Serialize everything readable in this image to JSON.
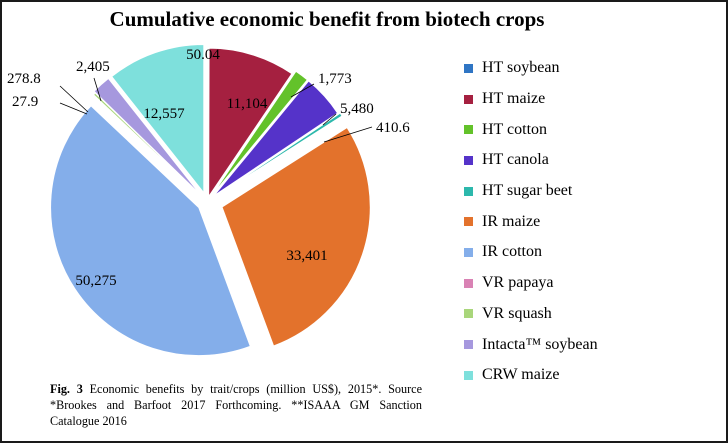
{
  "chart_data": {
    "type": "pie",
    "title": "Cumulative economic benefit from biotech crops",
    "slices": [
      {
        "label": "HT soybean",
        "value": 50.04,
        "display": "50.04",
        "color": "#2f75c4"
      },
      {
        "label": "HT maize",
        "value": 11104,
        "display": "11,104",
        "color": "#a52040"
      },
      {
        "label": "HT cotton",
        "value": 1773,
        "display": "1,773",
        "color": "#63c22a"
      },
      {
        "label": "HT canola",
        "value": 5480,
        "display": "5,480",
        "color": "#5533c9"
      },
      {
        "label": "HT sugar beet",
        "value": 410.6,
        "display": "410.6",
        "color": "#2cb8ac"
      },
      {
        "label": "IR maize",
        "value": 33401,
        "display": "33,401",
        "color": "#e3722c"
      },
      {
        "label": "IR cotton",
        "value": 50275,
        "display": "50,275",
        "color": "#84aeea"
      },
      {
        "label": "VR papaya",
        "value": 27.9,
        "display": "27.9",
        "color": "#d982b4"
      },
      {
        "label": "VR squash",
        "value": 278.8,
        "display": "278.8",
        "color": "#a9d67b"
      },
      {
        "label": "Intacta™ soybean",
        "value": 2405,
        "display": "2,405",
        "color": "#a698de"
      },
      {
        "label": "CRW maize",
        "value": 12557,
        "display": "12,557",
        "color": "#7ee0dc"
      }
    ],
    "legend_position": "right"
  },
  "caption": {
    "fig_label": "Fig. 3",
    "text": " Economic benefits by trait/crops (million US$), 2015*. Source *Brookes and Barfoot 2017 Forthcoming. **ISAAA GM Sanction Catalogue 2016"
  }
}
